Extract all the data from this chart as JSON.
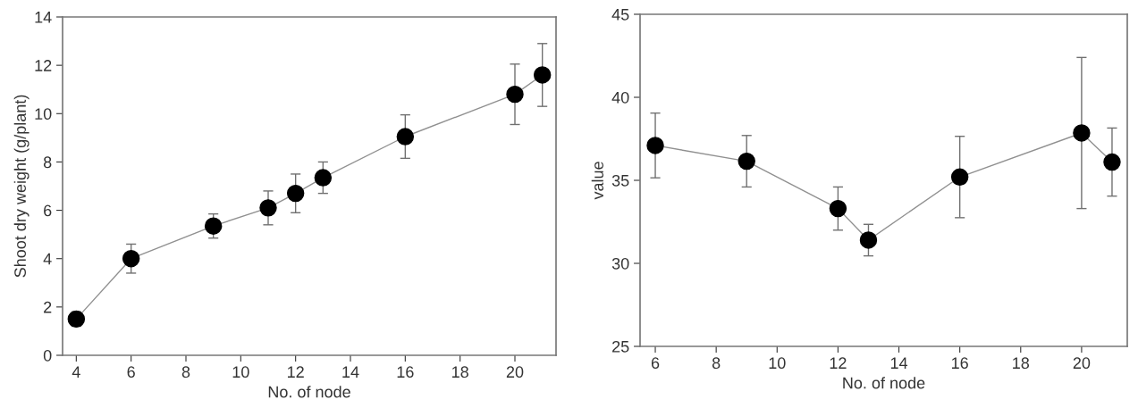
{
  "chart_data": [
    {
      "type": "line",
      "xlabel": "No. of node",
      "ylabel": "Shoot dry weight (g/plant)",
      "x": [
        4,
        6,
        9,
        11,
        12,
        13,
        16,
        20,
        21
      ],
      "series": [
        {
          "color": "#000000",
          "values": [
            1.5,
            4.0,
            5.35,
            6.1,
            6.7,
            7.35,
            9.05,
            10.8,
            11.6
          ],
          "errors": [
            0.3,
            0.6,
            0.5,
            0.7,
            0.8,
            0.65,
            0.9,
            1.25,
            1.3
          ]
        }
      ],
      "marker": "circle",
      "xlim": [
        3.5,
        21.5
      ],
      "xticks": [
        4,
        6,
        8,
        10,
        12,
        14,
        16,
        18,
        20
      ],
      "ylim": [
        0,
        14
      ],
      "yticks": [
        0,
        2,
        4,
        6,
        8,
        10,
        12,
        14
      ]
    },
    {
      "type": "line",
      "xlabel": "No. of node",
      "ylabel": "value",
      "x": [
        6,
        9,
        12,
        13,
        16,
        20,
        21
      ],
      "series": [
        {
          "color": "#000000",
          "values": [
            37.1,
            36.15,
            33.3,
            31.4,
            35.2,
            37.85,
            36.1
          ],
          "errors": [
            1.95,
            1.55,
            1.3,
            0.95,
            2.45,
            4.55,
            2.05
          ]
        }
      ],
      "marker": "circle",
      "xlim": [
        5.5,
        21.5
      ],
      "xticks": [
        6,
        8,
        10,
        12,
        14,
        16,
        18,
        20
      ],
      "ylim": [
        25,
        45
      ],
      "yticks": [
        25,
        30,
        35,
        40,
        45
      ]
    }
  ]
}
